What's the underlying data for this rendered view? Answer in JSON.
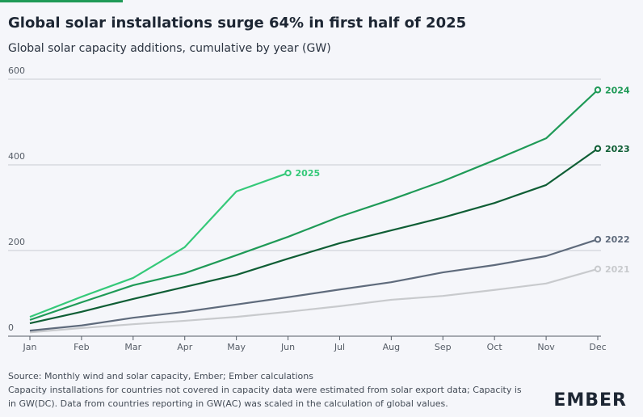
{
  "chart_data": {
    "type": "line",
    "title": "Global solar installations surge 64% in first half of 2025",
    "subtitle": "Global solar capacity additions, cumulative by year (GW)",
    "categories": [
      "Jan",
      "Feb",
      "Mar",
      "Apr",
      "May",
      "Jun",
      "Jul",
      "Aug",
      "Sep",
      "Oct",
      "Nov",
      "Dec"
    ],
    "series": [
      {
        "name": "2021",
        "color": "#c8cacd",
        "values": [
          9,
          19,
          28,
          36,
          45,
          57,
          70,
          85,
          94,
          108,
          123,
          157
        ]
      },
      {
        "name": "2022",
        "color": "#5f6b7c",
        "values": [
          13,
          25,
          43,
          57,
          74,
          91,
          109,
          126,
          149,
          166,
          187,
          226
        ]
      },
      {
        "name": "2023",
        "color": "#0f5e35",
        "values": [
          30,
          57,
          87,
          115,
          143,
          181,
          217,
          247,
          277,
          311,
          353,
          438
        ]
      },
      {
        "name": "2024",
        "color": "#1f9a57",
        "values": [
          38,
          79,
          119,
          147,
          189,
          232,
          279,
          319,
          362,
          411,
          462,
          575
        ]
      },
      {
        "name": "2025",
        "color": "#35c979",
        "values": [
          45,
          92,
          136,
          208,
          338,
          381,
          null,
          null,
          null,
          null,
          null,
          null
        ]
      }
    ],
    "ylim": [
      0,
      600
    ],
    "yticks": [
      0,
      200,
      400,
      600
    ],
    "grid": true,
    "source": "Source: Monthly wind and solar capacity, Ember; Ember calculations",
    "notes": [
      "Capacity installations for countries not covered in capacity data were estimated from solar export data; Capacity is",
      "in GW(DC). Data from countries reporting in GW(AC) was scaled in the calculation of global values."
    ],
    "logo": "EMBER"
  }
}
